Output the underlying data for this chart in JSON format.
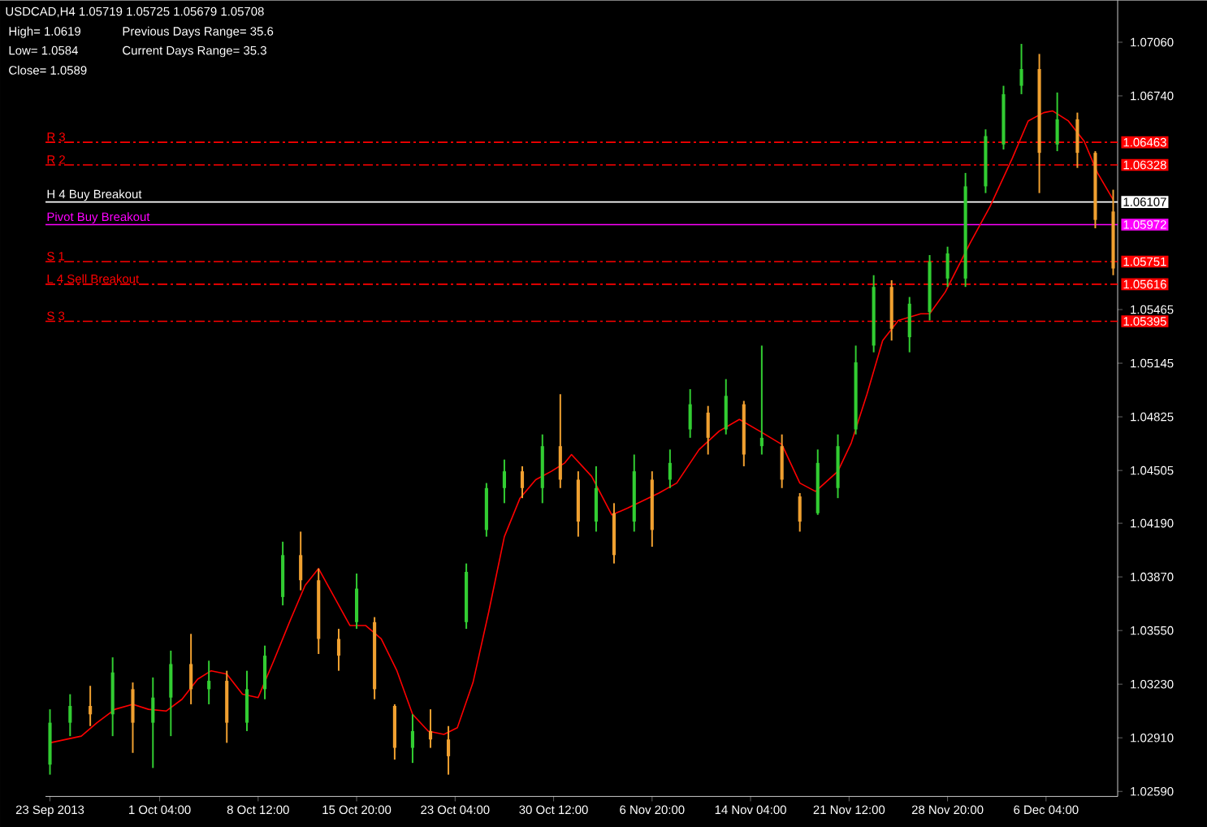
{
  "chart_data": {
    "type": "candlestick",
    "title": "USDCAD,H4  1.05719 1.05725 1.05679 1.05708",
    "annotations": [
      "High= 1.0619",
      "Previous Days Range= 35.6",
      "Low= 1.0584",
      "Current Days Range= 35.3",
      "Close= 1.0589",
      "1.06463",
      "1.06328",
      "1.06107",
      "1.05972",
      "1.05751",
      "1.05616",
      "1.05395"
    ],
    "x": [
      "2013-09-23T00:00",
      "2013-09-24T12:00",
      "2013-09-26T00:00",
      "2013-09-27T16:00",
      "2013-09-29T04:00",
      "2013-09-30T16:00",
      "2013-10-02T00:00",
      "2013-10-03T12:00",
      "2013-10-04T20:00",
      "2013-10-06T04:00",
      "2013-10-07T16:00",
      "2013-10-09T00:00",
      "2013-10-10T08:00",
      "2013-10-11T16:00",
      "2013-10-13T00:00",
      "2013-10-14T12:00",
      "2013-10-15T20:00",
      "2013-10-17T04:00",
      "2013-10-18T16:00",
      "2013-10-20T00:00",
      "2013-10-21T08:00",
      "2013-10-22T16:00",
      "2013-10-24T00:00",
      "2013-10-25T12:00",
      "2013-10-26T20:00",
      "2013-10-28T04:00",
      "2013-10-29T16:00",
      "2013-10-31T00:00",
      "2013-11-01T08:00",
      "2013-11-02T16:00",
      "2013-11-04T00:00",
      "2013-11-05T12:00",
      "2013-11-06T20:00",
      "2013-11-08T04:00",
      "2013-11-09T16:00",
      "2013-11-11T00:00",
      "2013-11-12T08:00",
      "2013-11-13T16:00",
      "2013-11-15T00:00",
      "2013-11-16T12:00",
      "2013-11-17T20:00",
      "2013-11-19T04:00",
      "2013-11-20T16:00",
      "2013-11-22T00:00",
      "2013-11-23T08:00",
      "2013-11-24T16:00",
      "2013-11-26T00:00",
      "2013-11-27T12:00",
      "2013-11-28T20:00",
      "2013-11-30T04:00",
      "2013-12-01T16:00",
      "2013-12-03T00:00",
      "2013-12-04T08:00",
      "2013-12-05T16:00",
      "2013-12-07T00:00",
      "2013-12-08T12:00",
      "2013-12-09T20:00",
      "2013-12-11T04:00"
    ],
    "ohlc": [
      [
        1.0275,
        1.0308,
        1.0269,
        1.03
      ],
      [
        1.03,
        1.0317,
        1.0292,
        1.031
      ],
      [
        1.031,
        1.0322,
        1.0298,
        1.0305
      ],
      [
        1.0305,
        1.0339,
        1.0292,
        1.033
      ],
      [
        1.032,
        1.0324,
        1.0282,
        1.03
      ],
      [
        1.03,
        1.0327,
        1.0273,
        1.0315
      ],
      [
        1.0315,
        1.0343,
        1.0292,
        1.0335
      ],
      [
        1.0335,
        1.0353,
        1.0311,
        1.032
      ],
      [
        1.032,
        1.0337,
        1.0311,
        1.0325
      ],
      [
        1.0325,
        1.0331,
        1.0288,
        1.03
      ],
      [
        1.03,
        1.0331,
        1.0295,
        1.032
      ],
      [
        1.032,
        1.0346,
        1.0314,
        1.034
      ],
      [
        1.0375,
        1.0408,
        1.037,
        1.04
      ],
      [
        1.04,
        1.0414,
        1.0379,
        1.0385
      ],
      [
        1.0385,
        1.0392,
        1.0341,
        1.035
      ],
      [
        1.035,
        1.0356,
        1.0331,
        1.034
      ],
      [
        1.036,
        1.0389,
        1.0356,
        1.038
      ],
      [
        1.036,
        1.0363,
        1.0314,
        1.032
      ],
      [
        1.031,
        1.0311,
        1.0278,
        1.0285
      ],
      [
        1.0285,
        1.0305,
        1.0276,
        1.0295
      ],
      [
        1.0295,
        1.0308,
        1.0285,
        1.029
      ],
      [
        1.029,
        1.0298,
        1.0269,
        1.028
      ],
      [
        1.036,
        1.0395,
        1.0356,
        1.039
      ],
      [
        1.0415,
        1.0443,
        1.0411,
        1.044
      ],
      [
        1.044,
        1.0457,
        1.0431,
        1.045
      ],
      [
        1.045,
        1.0453,
        1.0434,
        1.044
      ],
      [
        1.044,
        1.0472,
        1.0431,
        1.0465
      ],
      [
        1.0465,
        1.0496,
        1.044,
        1.0445
      ],
      [
        1.0445,
        1.045,
        1.0411,
        1.042
      ],
      [
        1.042,
        1.0453,
        1.0414,
        1.044
      ],
      [
        1.0425,
        1.0431,
        1.0395,
        1.04
      ],
      [
        1.042,
        1.046,
        1.0414,
        1.045
      ],
      [
        1.0445,
        1.045,
        1.0405,
        1.0415
      ],
      [
        1.0445,
        1.0463,
        1.044,
        1.0455
      ],
      [
        1.0475,
        1.0499,
        1.047,
        1.049
      ],
      [
        1.0485,
        1.0489,
        1.046,
        1.047
      ],
      [
        1.0475,
        1.0505,
        1.0472,
        1.0495
      ],
      [
        1.049,
        1.0492,
        1.0453,
        1.046
      ],
      [
        1.0465,
        1.0525,
        1.046,
        1.047
      ],
      [
        1.0465,
        1.0472,
        1.044,
        1.0445
      ],
      [
        1.0435,
        1.0437,
        1.0414,
        1.042
      ],
      [
        1.0425,
        1.0463,
        1.0424,
        1.0455
      ],
      [
        1.044,
        1.0472,
        1.0434,
        1.0465
      ],
      [
        1.0475,
        1.0525,
        1.0472,
        1.0515
      ],
      [
        1.0525,
        1.0567,
        1.0521,
        1.056
      ],
      [
        1.056,
        1.0564,
        1.0528,
        1.0535
      ],
      [
        1.053,
        1.0554,
        1.0521,
        1.055
      ],
      [
        1.0545,
        1.0579,
        1.054,
        1.0575
      ],
      [
        1.0565,
        1.0584,
        1.056,
        1.058
      ],
      [
        1.0565,
        1.0628,
        1.056,
        1.062
      ],
      [
        1.062,
        1.0654,
        1.0616,
        1.065
      ],
      [
        1.0645,
        1.068,
        1.0642,
        1.0675
      ],
      [
        1.068,
        1.0705,
        1.0675,
        1.069
      ],
      [
        1.069,
        1.0699,
        1.0616,
        1.064
      ],
      [
        1.0645,
        1.0676,
        1.0641,
        1.066
      ],
      [
        1.066,
        1.0664,
        1.0631,
        1.064
      ],
      [
        1.064,
        1.0641,
        1.0595,
        1.06
      ],
      [
        1.0605,
        1.0618,
        1.0567,
        1.0571
      ]
    ],
    "colors": [
      "#32cd32",
      "#32cd32",
      "#f0a030",
      "#32cd32",
      "#f0a030",
      "#32cd32",
      "#32cd32",
      "#f0a030",
      "#32cd32",
      "#f0a030",
      "#32cd32",
      "#32cd32",
      "#32cd32",
      "#f0a030",
      "#f0a030",
      "#f0a030",
      "#32cd32",
      "#f0a030",
      "#f0a030",
      "#32cd32",
      "#f0a030",
      "#f0a030",
      "#32cd32",
      "#32cd32",
      "#32cd32",
      "#f0a030",
      "#32cd32",
      "#f0a030",
      "#f0a030",
      "#32cd32",
      "#f0a030",
      "#32cd32",
      "#f0a030",
      "#32cd32",
      "#32cd32",
      "#f0a030",
      "#32cd32",
      "#f0a030",
      "#32cd32",
      "#f0a030",
      "#f0a030",
      "#32cd32",
      "#32cd32",
      "#32cd32",
      "#32cd32",
      "#f0a030",
      "#32cd32",
      "#32cd32",
      "#32cd32",
      "#32cd32",
      "#32cd32",
      "#32cd32",
      "#32cd32",
      "#f0a030",
      "#32cd32",
      "#f0a030",
      "#f0a030",
      "#f0a030"
    ],
    "series": [
      {
        "type": "line",
        "color": "#ff0000",
        "x": [
          "2013-09-23T00:00",
          "2013-09-25T08:00",
          "2013-09-26T12:00",
          "2013-09-27T20:00",
          "2013-09-29T04:00",
          "2013-09-30T08:00",
          "2013-10-01T16:00",
          "2013-10-02T20:00",
          "2013-10-04T00:00",
          "2013-10-05T00:00",
          "2013-10-06T04:00",
          "2013-10-07T08:00",
          "2013-10-08T12:00",
          "2013-10-09T16:00",
          "2013-10-10T20:00",
          "2013-10-12T00:00",
          "2013-10-13T00:00",
          "2013-10-14T04:00",
          "2013-10-15T08:00",
          "2013-10-16T12:00",
          "2013-10-17T16:00",
          "2013-10-18T20:00",
          "2013-10-20T00:00",
          "2013-10-21T04:00",
          "2013-10-22T08:00",
          "2013-10-23T08:00",
          "2013-10-24T12:00",
          "2013-10-25T16:00",
          "2013-10-26T20:00",
          "2013-10-28T00:00",
          "2013-10-29T04:00",
          "2013-10-30T08:00",
          "2013-10-31T08:00",
          "2013-10-31T20:00",
          "2013-11-02T08:00",
          "2013-11-03T20:00",
          "2013-11-05T00:00",
          "2013-11-07T08:00",
          "2013-11-08T16:00",
          "2013-11-10T08:00",
          "2013-11-11T20:00",
          "2013-11-13T08:00",
          "2013-11-14T20:00",
          "2013-11-16T12:00",
          "2013-11-17T20:00",
          "2013-11-19T00:00",
          "2013-11-20T16:00",
          "2013-11-21T16:00",
          "2013-11-22T20:00",
          "2013-11-24T00:00",
          "2013-11-25T04:00",
          "2013-11-26T20:00",
          "2013-11-27T12:00",
          "2013-11-28T16:00",
          "2013-11-30T12:00",
          "2013-12-02T00:00",
          "2013-12-03T16:00",
          "2013-12-04T20:00",
          "2013-12-06T00:00",
          "2013-12-06T16:00",
          "2013-12-07T20:00",
          "2013-12-09T00:00",
          "2013-12-10T00:00",
          "2013-12-11T04:00"
        ],
        "values": [
          1.0288,
          1.0292,
          1.03,
          1.0308,
          1.0311,
          1.0308,
          1.0307,
          1.0314,
          1.0326,
          1.0331,
          1.0329,
          1.0317,
          1.0315,
          1.0337,
          1.036,
          1.0382,
          1.0392,
          1.0375,
          1.0358,
          1.0358,
          1.035,
          1.0331,
          1.0305,
          1.0295,
          1.0293,
          1.0297,
          1.0324,
          1.0366,
          1.0411,
          1.0434,
          1.0445,
          1.045,
          1.0455,
          1.046,
          1.0447,
          1.0424,
          1.0428,
          1.0437,
          1.0443,
          1.0463,
          1.0474,
          1.0481,
          1.0474,
          1.0466,
          1.0443,
          1.0438,
          1.045,
          1.0467,
          1.0496,
          1.0528,
          1.054,
          1.0544,
          1.0544,
          1.0557,
          1.0586,
          1.0608,
          1.0637,
          1.0659,
          1.0664,
          1.0665,
          1.0659,
          1.0647,
          1.0628,
          1.0612
        ]
      }
    ],
    "xlim": [
      "2013-09-22T16:00",
      "2013-12-11T12:00"
    ],
    "xticks": [
      {
        "value": "2013-09-23T00:00",
        "label": "23 Sep 2013"
      },
      {
        "value": "2013-10-01T04:00",
        "label": "1 Oct 04:00"
      },
      {
        "value": "2013-10-08T12:00",
        "label": "8 Oct 12:00"
      },
      {
        "value": "2013-10-15T20:00",
        "label": "15 Oct 20:00"
      },
      {
        "value": "2013-10-23T04:00",
        "label": "23 Oct 04:00"
      },
      {
        "value": "2013-10-30T12:00",
        "label": "30 Oct 12:00"
      },
      {
        "value": "2013-11-06T20:00",
        "label": "6 Nov 20:00"
      },
      {
        "value": "2013-11-14T04:00",
        "label": "14 Nov 04:00"
      },
      {
        "value": "2013-11-21T12:00",
        "label": "21 Nov 12:00"
      },
      {
        "value": "2013-11-28T20:00",
        "label": "28 Nov 20:00"
      },
      {
        "value": "2013-12-06T04:00",
        "label": "6 Dec 04:00"
      }
    ],
    "ylim": [
      1.0256,
      1.0731
    ],
    "yticks": [
      {
        "value": 1.0706,
        "label": "1.07060"
      },
      {
        "value": 1.0674,
        "label": "1.06740"
      },
      1.05465,
      1.05145,
      1.04825,
      1.04505,
      {
        "value": 1.0419,
        "label": "1.04190"
      },
      {
        "value": 1.0387,
        "label": "1.03870"
      },
      {
        "value": 1.0355,
        "label": "1.03550"
      },
      {
        "value": 1.0323,
        "label": "1.03230"
      },
      {
        "value": 1.0291,
        "label": "1.02910"
      },
      {
        "value": 1.0259,
        "label": "1.02590"
      }
    ],
    "ref_lines": [
      {
        "axis": "y",
        "value": 1.06463,
        "label": "R 3",
        "color": "#ff0000",
        "line_style": "dashed"
      },
      {
        "axis": "y",
        "value": 1.06328,
        "label": "R 2",
        "color": "#ff0000",
        "line_style": "dashed"
      },
      {
        "axis": "y",
        "value": 1.06107,
        "label": "H 4 Buy Breakout",
        "color": "#ffffff",
        "line_style": "solid"
      },
      {
        "axis": "y",
        "value": 1.05972,
        "label": "Pivot Buy Breakout",
        "color": "#ff00ff",
        "line_style": "solid"
      },
      {
        "axis": "y",
        "value": 1.05751,
        "label": "S 1",
        "color": "#ff0000",
        "line_style": "dashed"
      },
      {
        "axis": "y",
        "value": 1.05616,
        "label": "L 4 Sell Breakout",
        "color": "#ff0000",
        "line_style": "dashed"
      },
      {
        "axis": "y",
        "value": 1.05395,
        "label": "S 3",
        "color": "#ff0000",
        "line_style": "dashed"
      }
    ]
  }
}
